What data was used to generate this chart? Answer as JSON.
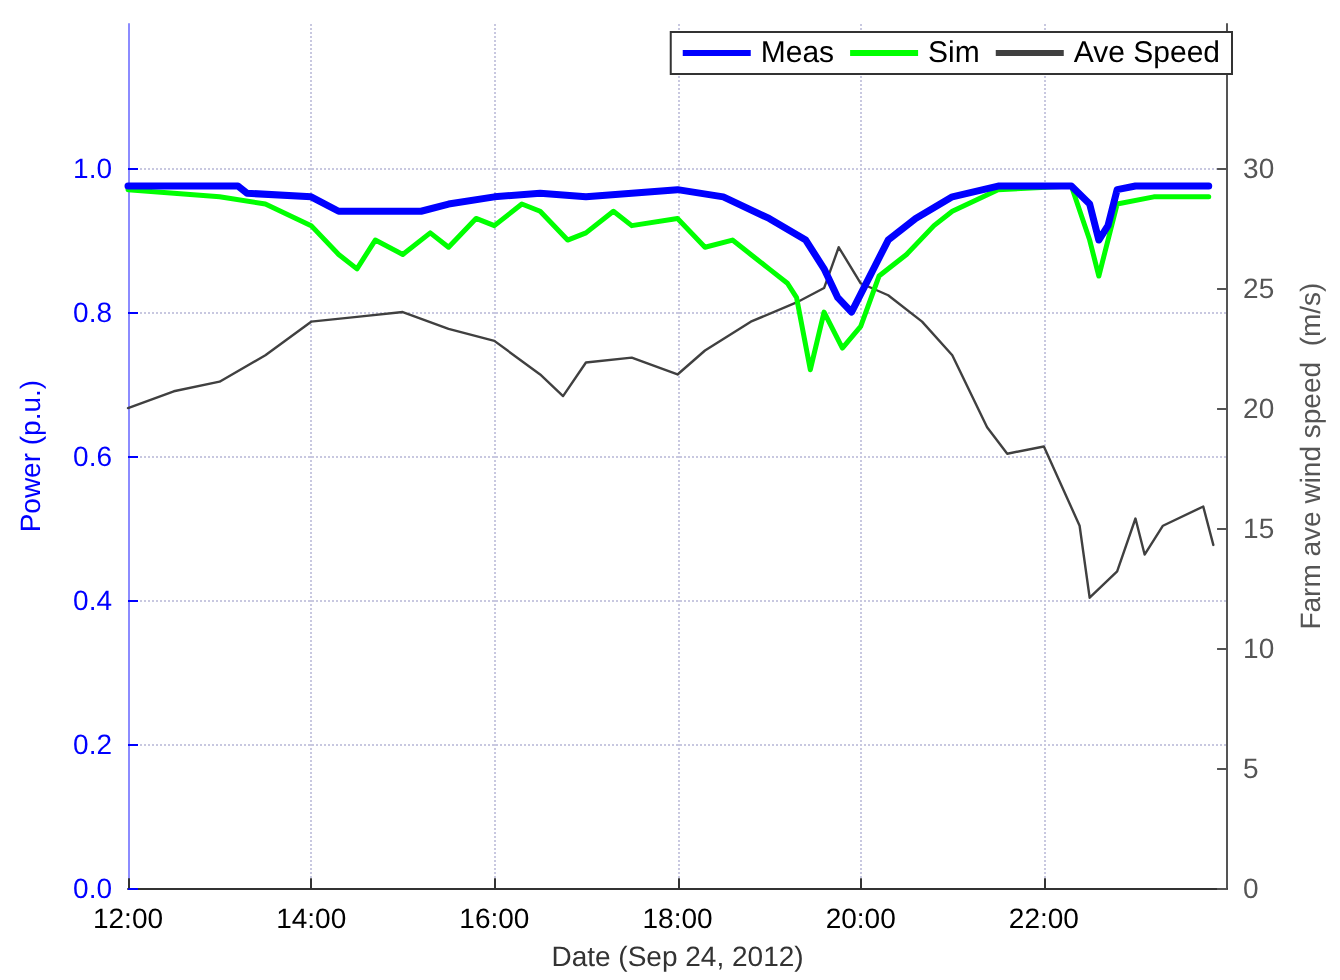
{
  "chart_data": {
    "type": "line",
    "xlabel": "Date (Sep 24, 2012)",
    "ylabel": "Power (p.u.)",
    "y2label": "Farm ave wind speed  (m/s)",
    "xlim": [
      12,
      24
    ],
    "xticks": [
      {
        "value": 12,
        "label": "12:00"
      },
      {
        "value": 14,
        "label": "14:00"
      },
      {
        "value": 16,
        "label": "16:00"
      },
      {
        "value": 18,
        "label": "18:00"
      },
      {
        "value": 20,
        "label": "20:00"
      },
      {
        "value": 22,
        "label": "22:00"
      }
    ],
    "ylim": [
      0,
      1.2
    ],
    "yticks": [
      {
        "value": 0,
        "label": "0.0"
      },
      {
        "value": 0.2,
        "label": "0.2"
      },
      {
        "value": 0.4,
        "label": "0.4"
      },
      {
        "value": 0.6,
        "label": "0.6"
      },
      {
        "value": 0.8,
        "label": "0.8"
      },
      {
        "value": 1,
        "label": "1.0"
      }
    ],
    "y2lim": [
      0,
      36
    ],
    "y2ticks": [
      0,
      5,
      10,
      15,
      20,
      25,
      30
    ],
    "grid": true,
    "legend": "top right",
    "marker": "none",
    "line_style": "solid",
    "series": [
      {
        "name": "Meas",
        "color": "#0000ff",
        "x": [
          12,
          13.2,
          13.3,
          14,
          14.3,
          14.8,
          15.2,
          15.5,
          16,
          16.5,
          17,
          17.5,
          18,
          18.5,
          19,
          19.4,
          19.6,
          19.75,
          19.9,
          20.1,
          20.3,
          20.6,
          21,
          21.5,
          22.3,
          22.5,
          22.6,
          22.7,
          22.8,
          23,
          23.8
        ],
        "values": [
          0.975,
          0.975,
          0.965,
          0.96,
          0.94,
          0.94,
          0.94,
          0.95,
          0.96,
          0.965,
          0.96,
          0.965,
          0.97,
          0.96,
          0.93,
          0.9,
          0.86,
          0.82,
          0.8,
          0.85,
          0.9,
          0.93,
          0.96,
          0.975,
          0.975,
          0.95,
          0.9,
          0.92,
          0.97,
          0.975,
          0.975
        ]
      },
      {
        "name": "Sim",
        "color": "#00ff00",
        "x": [
          12,
          12.5,
          13,
          13.5,
          14,
          14.3,
          14.5,
          14.7,
          15,
          15.3,
          15.5,
          15.8,
          16,
          16.3,
          16.5,
          16.8,
          17,
          17.3,
          17.5,
          18,
          18.3,
          18.6,
          18.8,
          19,
          19.2,
          19.3,
          19.45,
          19.6,
          19.8,
          20,
          20.2,
          20.5,
          20.8,
          21,
          21.5,
          22.3,
          22.5,
          22.6,
          22.7,
          22.8,
          23.2,
          23.8
        ],
        "values": [
          0.97,
          0.965,
          0.96,
          0.95,
          0.92,
          0.88,
          0.86,
          0.9,
          0.88,
          0.91,
          0.89,
          0.93,
          0.92,
          0.95,
          0.94,
          0.9,
          0.91,
          0.94,
          0.92,
          0.93,
          0.89,
          0.9,
          0.88,
          0.86,
          0.84,
          0.82,
          0.72,
          0.8,
          0.75,
          0.78,
          0.85,
          0.88,
          0.92,
          0.94,
          0.97,
          0.975,
          0.9,
          0.85,
          0.9,
          0.95,
          0.96,
          0.96
        ]
      },
      {
        "name": "Ave Speed",
        "color": "#404040",
        "axis": "y2",
        "x": [
          12,
          12.5,
          13,
          13.5,
          14,
          14.5,
          15,
          15.5,
          16,
          16.5,
          16.75,
          17,
          17.5,
          18,
          18.3,
          18.8,
          19.3,
          19.6,
          19.76,
          20,
          20.3,
          20.67,
          21,
          21.38,
          21.6,
          22,
          22.39,
          22.5,
          22.8,
          23,
          23.1,
          23.3,
          23.74,
          23.85
        ],
        "values": [
          20,
          20.7,
          21.1,
          22.2,
          23.6,
          23.8,
          24,
          23.3,
          22.8,
          21.4,
          20.5,
          21.9,
          22.1,
          21.4,
          22.4,
          23.6,
          24.4,
          25,
          26.7,
          25.2,
          24.7,
          23.6,
          22.2,
          19.2,
          18.1,
          18.4,
          15.1,
          12.1,
          13.2,
          15.4,
          13.9,
          15.1,
          15.9,
          14.3
        ]
      }
    ]
  }
}
